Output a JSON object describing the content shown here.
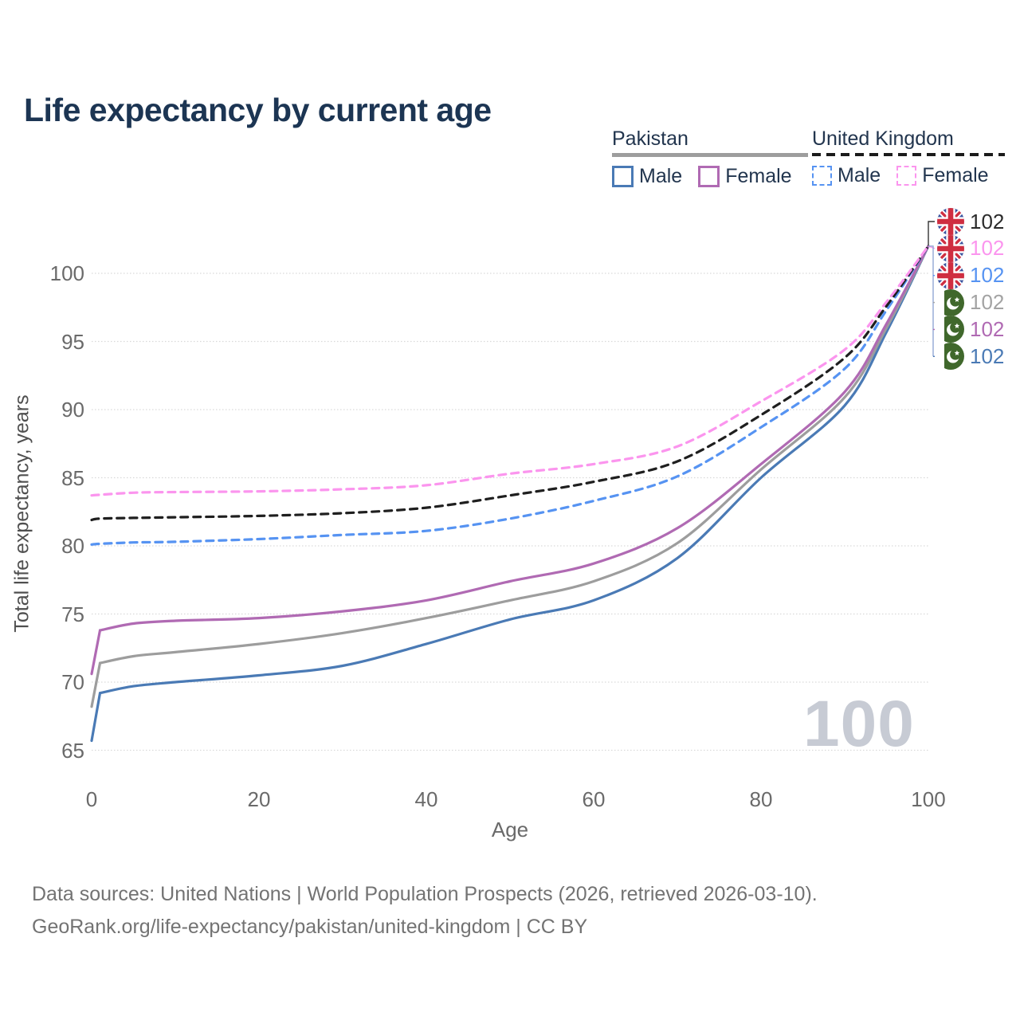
{
  "title": "Life expectancy by current age",
  "legend": {
    "groups": [
      {
        "name": "Pakistan",
        "line_style": "solid",
        "color": "#9d9d9d",
        "entries": [
          {
            "label": "Male",
            "color": "#4a7ab5",
            "dashed": false
          },
          {
            "label": "Female",
            "color": "#b06ab3",
            "dashed": false
          }
        ]
      },
      {
        "name": "United Kingdom",
        "line_style": "dashed",
        "color": "#1f1f1f",
        "entries": [
          {
            "label": "Male",
            "color": "#5693f2",
            "dashed": true
          },
          {
            "label": "Female",
            "color": "#fb95ee",
            "dashed": true
          }
        ]
      }
    ]
  },
  "watermark": "100",
  "captions": [
    "Data sources: United Nations | World Population Prospects (2026, retrieved 2026-03-10).",
    "GeoRank.org/life-expectancy/pakistan/united-kingdom | CC BY"
  ],
  "end_labels": [
    {
      "flag": "uk",
      "value": "102",
      "color": "#2b2b2b"
    },
    {
      "flag": "uk",
      "value": "102",
      "color": "#fb95ee"
    },
    {
      "flag": "uk",
      "value": "102",
      "color": "#5693f2"
    },
    {
      "flag": "pk",
      "value": "102",
      "color": "#a3a3a3"
    },
    {
      "flag": "pk",
      "value": "102",
      "color": "#b06ab3"
    },
    {
      "flag": "pk",
      "value": "102",
      "color": "#4a7ab5"
    }
  ],
  "chart_data": {
    "type": "line",
    "title": "Life expectancy by current age",
    "xlabel": "Age",
    "ylabel": "Total life expectancy, years",
    "xlim": [
      0,
      100
    ],
    "ylim": [
      65,
      100
    ],
    "x_ticks": [
      0,
      20,
      40,
      60,
      80,
      100
    ],
    "y_ticks": [
      65,
      70,
      75,
      80,
      85,
      90,
      95,
      100
    ],
    "grid": "horizontal",
    "legend_position": "top-right",
    "x": [
      0,
      1,
      5,
      10,
      20,
      30,
      40,
      50,
      60,
      70,
      80,
      90,
      95,
      100
    ],
    "series": [
      {
        "name": "Pakistan Male",
        "country": "Pakistan",
        "sex": "male",
        "color": "#4a7ab5",
        "dashed": false,
        "sharp_start": true,
        "values": [
          65.7,
          69.2,
          69.7,
          70.0,
          70.5,
          71.2,
          72.8,
          74.6,
          76.0,
          79.1,
          85.0,
          90.3,
          95.7,
          102
        ]
      },
      {
        "name": "Pakistan Both sexes",
        "country": "Pakistan",
        "sex": "both",
        "color": "#9d9d9d",
        "dashed": false,
        "sharp_start": true,
        "values": [
          68.2,
          71.4,
          71.9,
          72.2,
          72.8,
          73.6,
          74.7,
          76.0,
          77.4,
          80.2,
          85.6,
          90.9,
          96.0,
          102
        ]
      },
      {
        "name": "Pakistan Female",
        "country": "Pakistan",
        "sex": "female",
        "color": "#b06ab3",
        "dashed": false,
        "sharp_start": true,
        "values": [
          70.6,
          73.8,
          74.3,
          74.5,
          74.7,
          75.2,
          76.0,
          77.4,
          78.7,
          81.3,
          86.0,
          91.3,
          96.3,
          102
        ]
      },
      {
        "name": "United Kingdom Male",
        "country": "United Kingdom",
        "sex": "male",
        "color": "#5693f2",
        "dashed": true,
        "sharp_start": false,
        "values": [
          80.1,
          80.15,
          80.25,
          80.3,
          80.5,
          80.8,
          81.1,
          82.0,
          83.3,
          85.1,
          88.7,
          93.0,
          97.3,
          102
        ]
      },
      {
        "name": "United Kingdom Both sexes",
        "country": "United Kingdom",
        "sex": "both",
        "color": "#1f1f1f",
        "dashed": true,
        "sharp_start": false,
        "values": [
          81.9,
          82.0,
          82.05,
          82.1,
          82.2,
          82.4,
          82.8,
          83.7,
          84.7,
          86.2,
          89.6,
          93.8,
          97.6,
          102
        ]
      },
      {
        "name": "United Kingdom Female",
        "country": "United Kingdom",
        "sex": "female",
        "color": "#fb95ee",
        "dashed": true,
        "sharp_start": false,
        "values": [
          83.7,
          83.75,
          83.9,
          83.95,
          84.0,
          84.15,
          84.45,
          85.3,
          86.0,
          87.3,
          90.6,
          94.4,
          97.9,
          102
        ]
      }
    ],
    "end_value": 102
  },
  "colors": {
    "title_text": "#1c3553",
    "axis_text": "#6a6a6a",
    "caption_text": "#737373",
    "gridline": "#d9d9d9",
    "watermark": "#c7cbd4",
    "pk_male": "#4a7ab5",
    "pk_female": "#b06ab3",
    "pk_total": "#9d9d9d",
    "uk_male": "#5693f2",
    "uk_female": "#fb95ee",
    "uk_total": "#1f1f1f"
  }
}
